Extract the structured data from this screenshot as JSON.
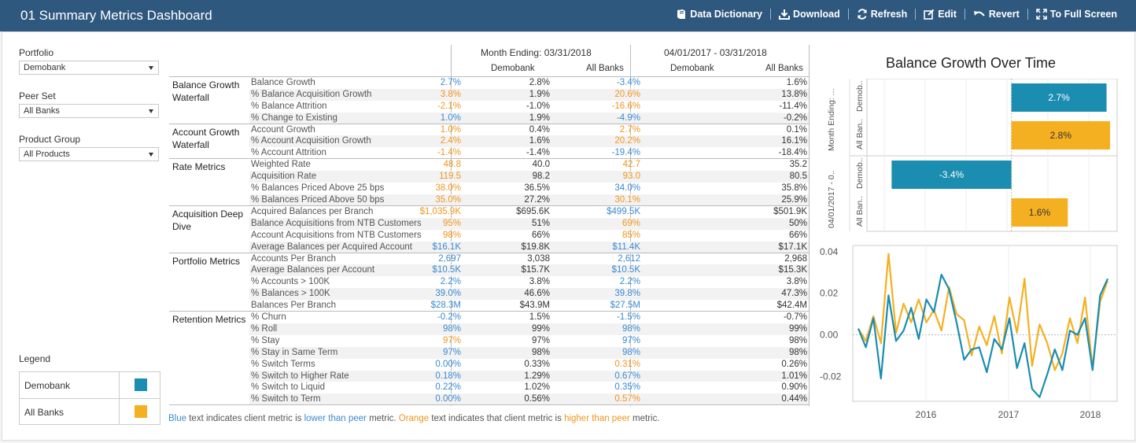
{
  "header": {
    "title": "01 Summary Metrics Dashboard",
    "tools": [
      {
        "label": "Data Dictionary",
        "icon": "book-icon"
      },
      {
        "label": "Download",
        "icon": "download-icon"
      },
      {
        "label": "Refresh",
        "icon": "refresh-icon"
      },
      {
        "label": "Edit",
        "icon": "edit-icon"
      },
      {
        "label": "Revert",
        "icon": "revert-icon"
      },
      {
        "label": "To Full Screen",
        "icon": "fullscreen-icon"
      }
    ]
  },
  "filters": [
    {
      "label": "Portfolio",
      "value": "Demobank"
    },
    {
      "label": "Peer Set",
      "value": "All Banks"
    },
    {
      "label": "Product Group",
      "value": "All Products"
    }
  ],
  "legend": {
    "title": "Legend",
    "items": [
      {
        "label": "Demobank",
        "color": "#1a8db0"
      },
      {
        "label": "All Banks",
        "color": "#f5b021"
      }
    ]
  },
  "table": {
    "period1": "Month Ending: 03/31/2018",
    "period2": "04/01/2017 - 03/31/2018",
    "col_demo": "Demobank",
    "col_all": "All Banks",
    "groups": [
      {
        "name": "Balance Growth Waterfall",
        "rows": [
          {
            "metric": "Balance Growth",
            "v": [
              "2.7%",
              "2.8%",
              "-3.4%",
              "1.6%"
            ],
            "c": [
              "blue",
              "plain",
              "blue",
              "plain"
            ]
          },
          {
            "metric": "% Balance Acquisition Growth",
            "v": [
              "3.8%",
              "1.9%",
              "20.6%",
              "13.8%"
            ],
            "c": [
              "orange",
              "plain",
              "orange",
              "plain"
            ]
          },
          {
            "metric": "% Balance Attrition",
            "v": [
              "-2.1%",
              "-1.0%",
              "-16.6%",
              "-11.4%"
            ],
            "c": [
              "orange",
              "plain",
              "orange",
              "plain"
            ]
          },
          {
            "metric": "% Change to Existing",
            "v": [
              "1.0%",
              "1.9%",
              "-4.9%",
              "-0.2%"
            ],
            "c": [
              "blue",
              "plain",
              "blue",
              "plain"
            ]
          }
        ]
      },
      {
        "name": "Account Growth Waterfall",
        "rows": [
          {
            "metric": "Account Growth",
            "v": [
              "1.0%",
              "0.4%",
              "2.7%",
              "0.1%"
            ],
            "c": [
              "orange",
              "plain",
              "orange",
              "plain"
            ]
          },
          {
            "metric": "% Account Acquisition Growth",
            "v": [
              "2.4%",
              "1.6%",
              "20.2%",
              "16.1%"
            ],
            "c": [
              "orange",
              "plain",
              "orange",
              "plain"
            ]
          },
          {
            "metric": "% Account Attrition",
            "v": [
              "-1.4%",
              "-1.4%",
              "-19.4%",
              "-18.4%"
            ],
            "c": [
              "orange",
              "plain",
              "blue",
              "plain"
            ]
          }
        ]
      },
      {
        "name": "Rate Metrics",
        "rows": [
          {
            "metric": "Weighted Rate",
            "v": [
              "48.8",
              "40.0",
              "42.7",
              "35.2"
            ],
            "c": [
              "orange",
              "plain",
              "orange",
              "plain"
            ]
          },
          {
            "metric": "Acquisition Rate",
            "v": [
              "119.5",
              "98.2",
              "93.0",
              "80.5"
            ],
            "c": [
              "orange",
              "plain",
              "orange",
              "plain"
            ]
          },
          {
            "metric": "% Balances Priced Above 25 bps",
            "v": [
              "38.0%",
              "36.5%",
              "34.0%",
              "35.8%"
            ],
            "c": [
              "orange",
              "plain",
              "blue",
              "plain"
            ]
          },
          {
            "metric": "% Balances Priced Above 50 bps",
            "v": [
              "35.0%",
              "27.2%",
              "30.1%",
              "25.9%"
            ],
            "c": [
              "orange",
              "plain",
              "orange",
              "plain"
            ]
          }
        ]
      },
      {
        "name": "Acquisition Deep Dive",
        "rows": [
          {
            "metric": "Acquired Balances per Branch",
            "v": [
              "$1,035.9K",
              "$695.6K",
              "$499.5K",
              "$501.9K"
            ],
            "c": [
              "orange",
              "plain",
              "blue",
              "plain"
            ]
          },
          {
            "metric": "Balance Acquisitions from NTB Customers",
            "v": [
              "95%",
              "51%",
              "69%",
              "50%"
            ],
            "c": [
              "orange",
              "plain",
              "orange",
              "plain"
            ]
          },
          {
            "metric": "Account Acquisitions from NTB Customers",
            "v": [
              "98%",
              "66%",
              "85%",
              "66%"
            ],
            "c": [
              "orange",
              "plain",
              "orange",
              "plain"
            ]
          },
          {
            "metric": "Average Balances per Acquired Account",
            "v": [
              "$16.1K",
              "$19.8K",
              "$11.4K",
              "$17.1K"
            ],
            "c": [
              "blue",
              "plain",
              "blue",
              "plain"
            ]
          }
        ]
      },
      {
        "name": "Portfolio Metrics",
        "rows": [
          {
            "metric": "Accounts Per Branch",
            "v": [
              "2,697",
              "3,038",
              "2,612",
              "2,968"
            ],
            "c": [
              "blue",
              "plain",
              "blue",
              "plain"
            ]
          },
          {
            "metric": "Average Balances per Account",
            "v": [
              "$10.5K",
              "$15.7K",
              "$10.5K",
              "$15.3K"
            ],
            "c": [
              "blue",
              "plain",
              "blue",
              "plain"
            ]
          },
          {
            "metric": "% Accounts > 100K",
            "v": [
              "2.2%",
              "3.8%",
              "2.2%",
              "3.8%"
            ],
            "c": [
              "blue",
              "plain",
              "blue",
              "plain"
            ]
          },
          {
            "metric": "% Balances > 100K",
            "v": [
              "39.0%",
              "46.6%",
              "39.8%",
              "47.3%"
            ],
            "c": [
              "blue",
              "plain",
              "blue",
              "plain"
            ]
          },
          {
            "metric": "Balances Per Branch",
            "v": [
              "$28.3M",
              "$43.9M",
              "$27.5M",
              "$42.4M"
            ],
            "c": [
              "blue",
              "plain",
              "blue",
              "plain"
            ]
          }
        ]
      },
      {
        "name": "Retention Metrics",
        "rows": [
          {
            "metric": "% Churn",
            "v": [
              "-0.2%",
              "1.5%",
              "-1.5%",
              "-0.7%"
            ],
            "c": [
              "blue",
              "plain",
              "blue",
              "plain"
            ]
          },
          {
            "metric": "% Roll",
            "v": [
              "98%",
              "99%",
              "98%",
              "99%"
            ],
            "c": [
              "blue",
              "plain",
              "blue",
              "plain"
            ]
          },
          {
            "metric": "% Stay",
            "v": [
              "97%",
              "97%",
              "97%",
              "98%"
            ],
            "c": [
              "orange",
              "plain",
              "blue",
              "plain"
            ]
          },
          {
            "metric": "% Stay in Same Term",
            "v": [
              "97%",
              "98%",
              "98%",
              "98%"
            ],
            "c": [
              "blue",
              "plain",
              "blue",
              "plain"
            ]
          },
          {
            "metric": "% Switch Terms",
            "v": [
              "0.00%",
              "0.33%",
              "0.31%",
              "0.26%"
            ],
            "c": [
              "blue",
              "plain",
              "orange",
              "plain"
            ]
          },
          {
            "metric": "% Switch to Higher Rate",
            "v": [
              "0.18%",
              "1.29%",
              "0.67%",
              "1.01%"
            ],
            "c": [
              "blue",
              "plain",
              "blue",
              "plain"
            ]
          },
          {
            "metric": "% Switch to Liquid",
            "v": [
              "0.22%",
              "1.02%",
              "0.35%",
              "0.90%"
            ],
            "c": [
              "blue",
              "plain",
              "blue",
              "plain"
            ]
          },
          {
            "metric": "% Switch to Term",
            "v": [
              "0.00%",
              "0.56%",
              "0.57%",
              "0.44%"
            ],
            "c": [
              "blue",
              "plain",
              "orange",
              "plain"
            ]
          }
        ]
      }
    ],
    "footnote": {
      "blue_word": "Blue",
      "t1": " text indicates client metric is ",
      "lower": "lower than peer",
      "t2": " metric. ",
      "orange_word": "Orange",
      "t3": " text indicates that client metric is ",
      "higher": "higher than peer",
      "t4": " metric."
    }
  },
  "chart_data": [
    {
      "type": "bar",
      "title": "Balance Growth Over Time",
      "orientation": "horizontal",
      "groups": [
        {
          "label": "Month Ending: ...",
          "bars": [
            {
              "name": "Demob..",
              "value": 2.7,
              "label": "2.7%",
              "color": "#1a8db0"
            },
            {
              "name": "All Ban..",
              "value": 2.8,
              "label": "2.8%",
              "color": "#f5b021"
            }
          ]
        },
        {
          "label": "04/01/2017 - 0..",
          "bars": [
            {
              "name": "Demob..",
              "value": -3.4,
              "label": "-3.4%",
              "color": "#1a8db0"
            },
            {
              "name": "All Ban..",
              "value": 1.6,
              "label": "1.6%",
              "color": "#f5b021"
            }
          ]
        }
      ],
      "xlim": [
        -4.1,
        3.0
      ]
    },
    {
      "type": "line",
      "x_ticks": [
        "2016",
        "2017",
        "2018"
      ],
      "y_ticks": [
        "0.04",
        "0.02",
        "0.00",
        "-0.02"
      ],
      "ylim": [
        -0.032,
        0.043
      ],
      "series": [
        {
          "color": "#1a8db0",
          "values": [
            0.003,
            -0.006,
            0.008,
            -0.021,
            0.019,
            -0.003,
            0.002,
            0.013,
            -0.002,
            0.017,
            0.011,
            0.029,
            0.022,
            0.006,
            -0.012,
            -0.007,
            -0.006,
            -0.018,
            -0.002,
            -0.007,
            0.008,
            -0.016,
            -0.004,
            -0.026,
            -0.03,
            -0.019,
            -0.007,
            -0.017,
            0.002,
            0.0,
            0.008,
            -0.017,
            0.019,
            0.027
          ]
        },
        {
          "color": "#f5b021",
          "values": [
            0.003,
            -0.003,
            0.009,
            -0.004,
            0.039,
            0.001,
            0.015,
            0.006,
            0.017,
            0.006,
            0.012,
            0.002,
            0.023,
            0.01,
            0.007,
            -0.01,
            0.004,
            -0.005,
            0.009,
            -0.009,
            0.018,
            0.001,
            0.027,
            -0.015,
            0.005,
            -0.004,
            -0.017,
            -0.009,
            0.008,
            -0.004,
            0.018,
            -0.016,
            0.016,
            0.026
          ]
        }
      ]
    }
  ]
}
